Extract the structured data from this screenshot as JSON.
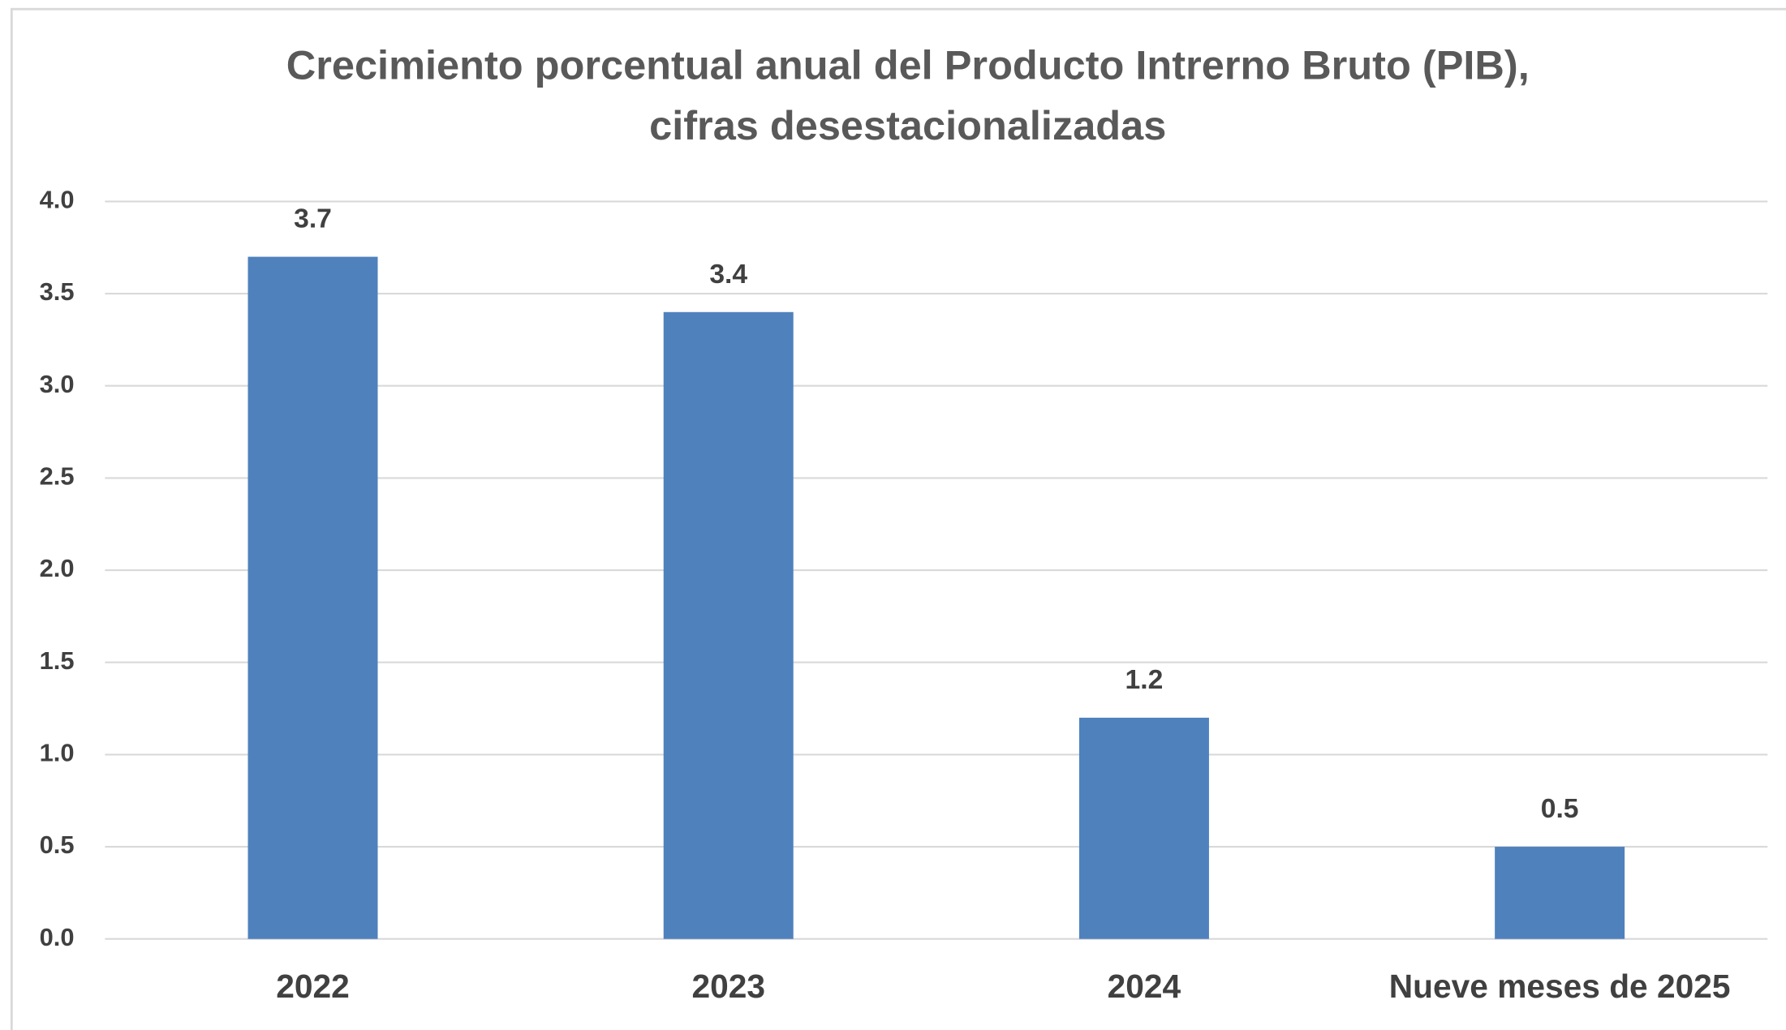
{
  "chart_data": {
    "type": "bar",
    "title": [
      "Crecimiento porcentual anual del Producto Intrerno Bruto (PIB),",
      "cifras desestacionalizadas"
    ],
    "categories": [
      "2022",
      "2023",
      "2024",
      "Nueve meses de 2025"
    ],
    "values": [
      3.7,
      3.4,
      1.2,
      0.5
    ],
    "color": "#4f81bd",
    "ylim": [
      0,
      4
    ],
    "yticks": [
      {
        "value": 0,
        "label": "0.0"
      },
      0.5,
      {
        "value": 1,
        "label": "1.0"
      },
      1.5,
      {
        "value": 2,
        "label": "2.0"
      },
      2.5,
      {
        "value": 3,
        "label": "3.0"
      },
      3.5,
      {
        "value": 4,
        "label": "4.0"
      }
    ],
    "grid": true
  }
}
